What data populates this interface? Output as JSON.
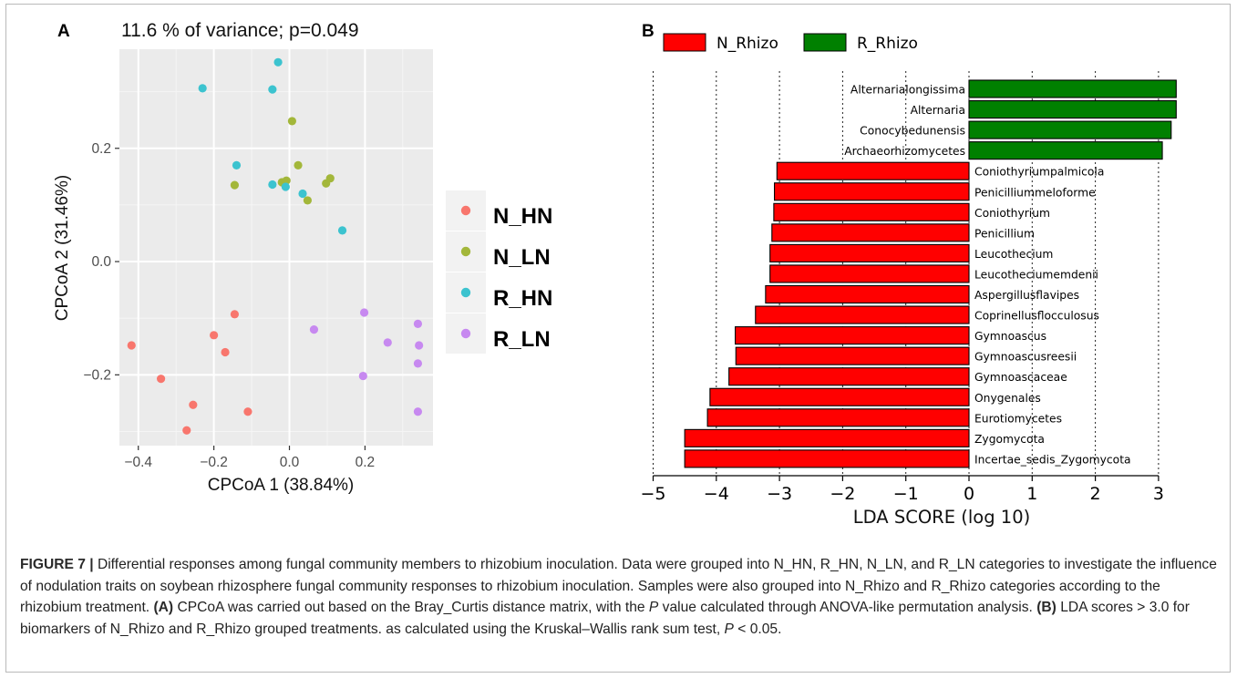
{
  "panel_a": {
    "letter": "A",
    "title": "11.6 % of variance; p=0.049"
  },
  "panel_b": {
    "letter": "B"
  },
  "caption": {
    "lead": "FIGURE 7 |",
    "s1": " Differential responses among fungal community members to rhizobium inoculation. Data were grouped into N_HN, R_HN, N_LN, and R_LN categories to investigate the influence of nodulation traits on soybean rhizosphere fungal community responses to rhizobium inoculation. Samples were also grouped into N_Rhizo and R_Rhizo categories according to the rhizobium treatment. ",
    "a_label": "(A)",
    "s2": " CPCoA was carried out based on the Bray_Curtis distance matrix, with the ",
    "p_italic": "P",
    "s3": " value calculated through ANOVA-like permutation analysis. ",
    "b_label": "(B)",
    "s4": " LDA scores > 3.0 for biomarkers of N_Rhizo and R_Rhizo grouped treatments. as calculated using the Kruskal–Wallis rank sum test, ",
    "p2_italic": "P",
    "s5": " < 0.05."
  },
  "chart_data": [
    {
      "type": "scatter",
      "xlabel": "CPCoA 1 (38.84%)",
      "ylabel": "CPCoA 2 (31.46%)",
      "xlim": [
        -0.45,
        0.38
      ],
      "ylim": [
        -0.325,
        0.375
      ],
      "xticks": [
        -0.4,
        -0.2,
        0.0,
        0.2
      ],
      "xtick_labels": [
        "−0.4",
        "−0.2",
        "0.0",
        "0.2"
      ],
      "yticks": [
        -0.2,
        0.0,
        0.2
      ],
      "ytick_labels": [
        "−0.2",
        "0.0",
        "0.2"
      ],
      "grid": true,
      "legend_position": "right",
      "series": [
        {
          "name": "N_HN",
          "color": "#F8766D",
          "points": [
            [
              -0.418,
              -0.148
            ],
            [
              -0.34,
              -0.207
            ],
            [
              -0.255,
              -0.253
            ],
            [
              -0.272,
              -0.298
            ],
            [
              -0.2,
              -0.13
            ],
            [
              -0.17,
              -0.16
            ],
            [
              -0.145,
              -0.093
            ],
            [
              -0.11,
              -0.265
            ]
          ]
        },
        {
          "name": "N_LN",
          "color": "#A3B73A",
          "points": [
            [
              0.007,
              0.248
            ],
            [
              -0.145,
              0.135
            ],
            [
              0.023,
              0.17
            ],
            [
              -0.02,
              0.14
            ],
            [
              -0.008,
              0.143
            ],
            [
              0.097,
              0.138
            ],
            [
              0.108,
              0.147
            ],
            [
              0.048,
              0.108
            ]
          ]
        },
        {
          "name": "R_HN",
          "color": "#3CC3CF",
          "points": [
            [
              -0.23,
              0.306
            ],
            [
              -0.03,
              0.352
            ],
            [
              -0.045,
              0.304
            ],
            [
              -0.14,
              0.17
            ],
            [
              -0.045,
              0.136
            ],
            [
              -0.01,
              0.132
            ],
            [
              0.035,
              0.12
            ],
            [
              0.14,
              0.055
            ]
          ]
        },
        {
          "name": "R_LN",
          "color": "#C789F0",
          "points": [
            [
              0.065,
              -0.12
            ],
            [
              0.198,
              -0.09
            ],
            [
              0.195,
              -0.202
            ],
            [
              0.26,
              -0.143
            ],
            [
              0.34,
              -0.11
            ],
            [
              0.343,
              -0.148
            ],
            [
              0.34,
              -0.18
            ],
            [
              0.34,
              -0.265
            ]
          ]
        }
      ]
    },
    {
      "type": "bar",
      "orientation": "horizontal",
      "xlabel": "LDA SCORE (log 10)",
      "xlim": [
        -5,
        3.45
      ],
      "xticks": [
        -5,
        -4,
        -3,
        -2,
        -1,
        0,
        1,
        2,
        3
      ],
      "xtick_labels": [
        "−5",
        "−4",
        "−3",
        "−2",
        "−1",
        "0",
        "1",
        "2",
        "3"
      ],
      "grid": "vertical-dotted",
      "legend_position": "top",
      "legend": [
        {
          "name": "N_Rhizo",
          "color": "#FF0000"
        },
        {
          "name": "R_Rhizo",
          "color": "#008000"
        }
      ],
      "categories": [
        "Alternarialongissima",
        "Alternaria",
        "Conocybedunensis",
        "Archaeorhizomycetes",
        "Coniothyriumpalmicola",
        "Penicilliummeloforme",
        "Coniothyrium",
        "Penicillium",
        "Leucothecium",
        "Leucotheciumemdenii",
        "Aspergillusflavipes",
        "Coprinellusflocculosus",
        "Gymnoascus",
        "Gymnoascusreesii",
        "Gymnoascaceae",
        "Onygenales",
        "Eurotiomycetes",
        "Zygomycota",
        "Incertae_sedis_Zygomycota"
      ],
      "values": [
        3.28,
        3.28,
        3.2,
        3.06,
        -3.04,
        -3.08,
        -3.09,
        -3.12,
        -3.15,
        -3.15,
        -3.22,
        -3.38,
        -3.7,
        -3.69,
        -3.8,
        -4.1,
        -4.14,
        -4.5,
        -4.5
      ],
      "groups": [
        "R_Rhizo",
        "R_Rhizo",
        "R_Rhizo",
        "R_Rhizo",
        "N_Rhizo",
        "N_Rhizo",
        "N_Rhizo",
        "N_Rhizo",
        "N_Rhizo",
        "N_Rhizo",
        "N_Rhizo",
        "N_Rhizo",
        "N_Rhizo",
        "N_Rhizo",
        "N_Rhizo",
        "N_Rhizo",
        "N_Rhizo",
        "N_Rhizo",
        "N_Rhizo"
      ]
    }
  ]
}
